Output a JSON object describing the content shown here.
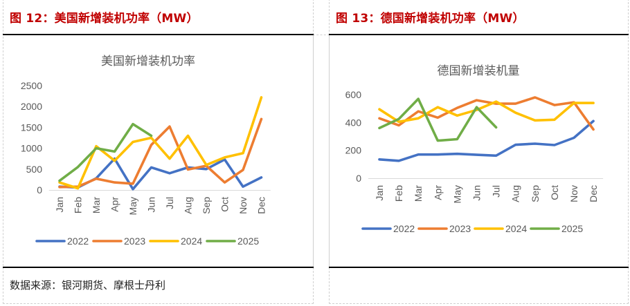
{
  "figures": [
    {
      "id": "us",
      "figure_title": "图 12：美国新增装机功率（MW）"
    },
    {
      "id": "de",
      "figure_title": "图 13：德国新增装机功率（MW）"
    }
  ],
  "source_note": "数据来源：银河期货、摩根士丹利",
  "colors": {
    "title_red": "#c00000",
    "2022": "#4472c4",
    "2023": "#ed7d31",
    "2024": "#ffc000",
    "2025": "#70ad47"
  },
  "chart_data": [
    {
      "type": "line",
      "title": "美国新增装机功率",
      "xlabel": "",
      "ylabel": "",
      "categories": [
        "Jan",
        "Feb",
        "Mar",
        "Apr",
        "May",
        "Jun",
        "Jul",
        "Aug",
        "Sep",
        "Oct",
        "Nov",
        "Dec"
      ],
      "ylim": [
        0,
        2500
      ],
      "yticks": [
        0,
        500,
        1000,
        1500,
        2000,
        2500
      ],
      "grid": false,
      "legend": "bottom",
      "series": [
        {
          "name": "2022",
          "color": "#4472c4",
          "values": [
            80,
            60,
            280,
            750,
            20,
            540,
            400,
            540,
            500,
            730,
            80,
            300
          ]
        },
        {
          "name": "2023",
          "color": "#ed7d31",
          "values": [
            70,
            80,
            270,
            180,
            150,
            1080,
            1520,
            490,
            580,
            180,
            480,
            1700
          ]
        },
        {
          "name": "2024",
          "color": "#ffc000",
          "values": [
            180,
            40,
            1050,
            700,
            1150,
            1250,
            750,
            1300,
            600,
            780,
            880,
            2220
          ]
        },
        {
          "name": "2025",
          "color": "#70ad47",
          "values": [
            220,
            550,
            1000,
            920,
            1580,
            1300
          ]
        }
      ]
    },
    {
      "type": "line",
      "title": "德国新增装机量",
      "xlabel": "",
      "ylabel": "",
      "categories": [
        "Jan",
        "Feb",
        "Mar",
        "Apr",
        "May",
        "Jun",
        "Jul",
        "Aug",
        "Sep",
        "Oct",
        "Nov",
        "Dec"
      ],
      "ylim": [
        0,
        600
      ],
      "yticks": [
        0,
        200,
        400,
        600
      ],
      "grid": false,
      "legend": "bottom",
      "series": [
        {
          "name": "2022",
          "color": "#4472c4",
          "values": [
            135,
            125,
            170,
            170,
            175,
            168,
            162,
            240,
            248,
            238,
            290,
            410
          ]
        },
        {
          "name": "2023",
          "color": "#ed7d31",
          "values": [
            430,
            380,
            480,
            435,
            505,
            560,
            535,
            535,
            580,
            525,
            545,
            350
          ]
        },
        {
          "name": "2024",
          "color": "#ffc000",
          "values": [
            495,
            405,
            430,
            510,
            450,
            490,
            550,
            470,
            415,
            420,
            540,
            540
          ]
        },
        {
          "name": "2025",
          "color": "#70ad47",
          "values": [
            360,
            425,
            570,
            270,
            280,
            510,
            365
          ]
        }
      ]
    }
  ]
}
